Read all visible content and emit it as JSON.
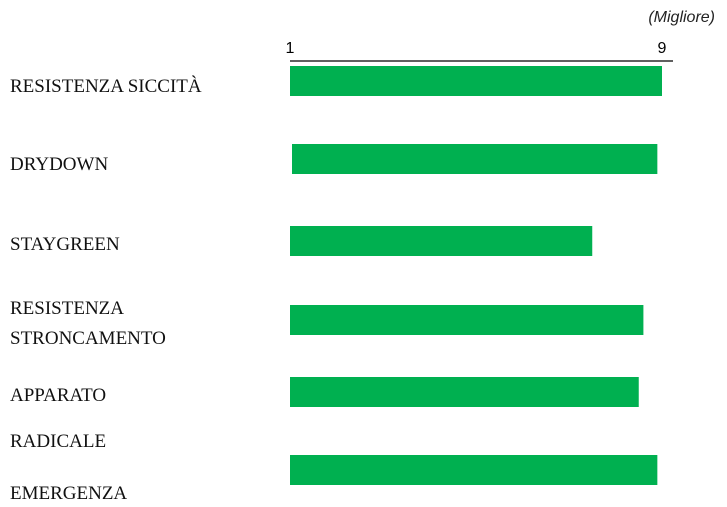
{
  "chart_data": {
    "type": "barh",
    "annotation": "(Migliore)",
    "categories": [
      "RESISTENZA SICCITÀ",
      "DRYDOWN",
      "STAYGREEN",
      "RESISTENZA STRONCAMENTO",
      "APPARATO RADICALE",
      "EMERGENZA"
    ],
    "values": [
      9.0,
      8.9,
      7.5,
      8.6,
      8.5,
      8.9
    ],
    "color": "#00b050",
    "xlim": [
      1,
      9
    ],
    "xticks": [
      1,
      9
    ],
    "grid": false
  }
}
